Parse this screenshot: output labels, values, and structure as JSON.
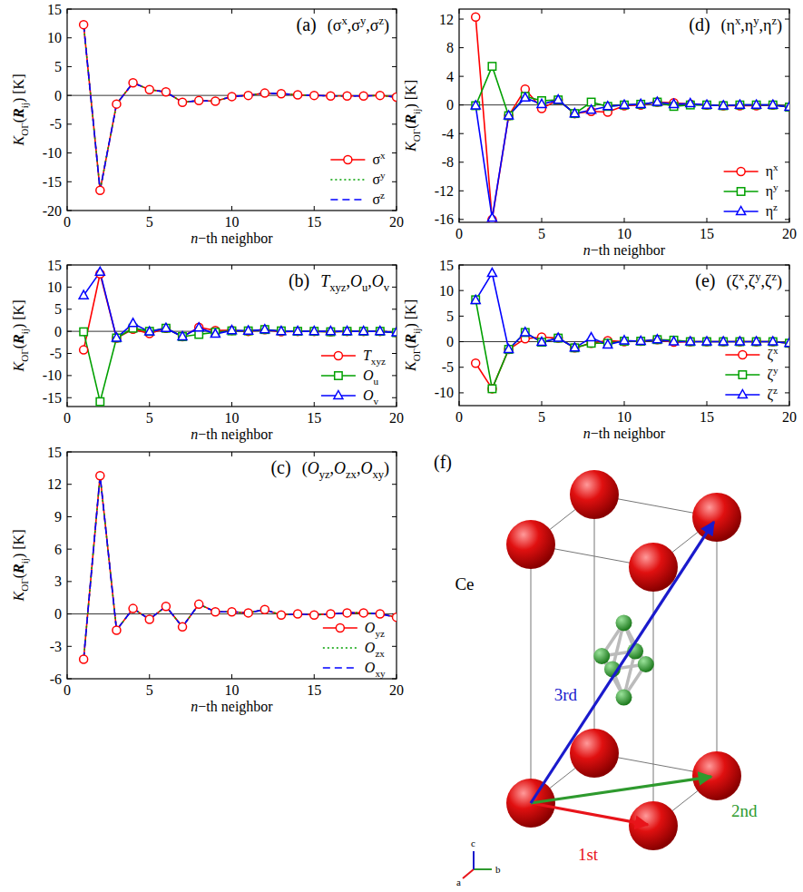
{
  "chart_data": [
    {
      "type": "line",
      "panel_label": "(a)",
      "title": [
        "(σ",
        {
          "sup": "x"
        },
        ",σ",
        {
          "sup": "y"
        },
        ",σ",
        {
          "sup": "z"
        },
        ")"
      ],
      "x_label": [
        {
          "i": "n"
        },
        "−th neighbor"
      ],
      "y_label": [
        {
          "i": "K"
        },
        {
          "sub": "OΓ"
        },
        "(",
        {
          "b": "R"
        },
        {
          "sub": "ij"
        },
        ") [K]"
      ],
      "x": [
        1,
        2,
        3,
        4,
        5,
        6,
        7,
        8,
        9,
        10,
        11,
        12,
        13,
        14,
        15,
        16,
        17,
        18,
        19,
        20
      ],
      "xlim": [
        0,
        20
      ],
      "xticks": [
        0,
        5,
        10,
        15,
        20
      ],
      "ylim": [
        -20,
        15
      ],
      "yticks": [
        -20,
        -15,
        -10,
        -5,
        0,
        5,
        10,
        15
      ],
      "legend": "lower right",
      "series": [
        {
          "name": [
            "σ",
            {
              "sup": "x"
            }
          ],
          "color": "#ff0000",
          "marker": "circle",
          "line_style": "solid",
          "values": [
            12.3,
            -16.5,
            -1.5,
            2.2,
            1.0,
            0.6,
            -1.2,
            -0.9,
            -1.0,
            -0.2,
            0.0,
            0.4,
            0.3,
            0.1,
            0.0,
            -0.1,
            -0.1,
            -0.1,
            0.0,
            -0.3
          ]
        },
        {
          "name": [
            "σ",
            {
              "sup": "y"
            }
          ],
          "color": "#00a000",
          "marker": "none",
          "line_style": "dotted",
          "values": [
            12.3,
            -16.5,
            -1.5,
            2.2,
            1.0,
            0.6,
            -1.2,
            -0.9,
            -1.0,
            -0.2,
            0.0,
            0.4,
            0.3,
            0.1,
            0.0,
            -0.1,
            -0.1,
            -0.1,
            0.0,
            -0.3
          ]
        },
        {
          "name": [
            "σ",
            {
              "sup": "z"
            }
          ],
          "color": "#0000ff",
          "marker": "none",
          "line_style": "dashed",
          "values": [
            12.3,
            -16.5,
            -1.5,
            2.2,
            1.0,
            0.6,
            -1.2,
            -0.9,
            -1.0,
            -0.2,
            0.0,
            0.4,
            0.3,
            0.1,
            0.0,
            -0.1,
            -0.1,
            -0.1,
            0.0,
            -0.3
          ]
        }
      ]
    },
    {
      "type": "line",
      "panel_label": "(b)",
      "title": [
        {
          "i": "T"
        },
        {
          "sub": "xyz"
        },
        ",",
        {
          "i": "O"
        },
        {
          "sub": "u"
        },
        ",",
        {
          "i": "O"
        },
        {
          "sub": "v"
        }
      ],
      "x_label": [
        {
          "i": "n"
        },
        "−th neighbor"
      ],
      "y_label": [
        {
          "i": "K"
        },
        {
          "sub": "OΓ"
        },
        "(",
        {
          "b": "R"
        },
        {
          "sub": "ij"
        },
        ") [K]"
      ],
      "x": [
        1,
        2,
        3,
        4,
        5,
        6,
        7,
        8,
        9,
        10,
        11,
        12,
        13,
        14,
        15,
        16,
        17,
        18,
        19,
        20
      ],
      "xlim": [
        0,
        20
      ],
      "xticks": [
        0,
        5,
        10,
        15,
        20
      ],
      "ylim": [
        -17,
        15
      ],
      "yticks": [
        -15,
        -10,
        -5,
        0,
        5,
        10,
        15
      ],
      "legend": "lower right",
      "series": [
        {
          "name": [
            {
              "i": "T"
            },
            {
              "sub": "xyz"
            }
          ],
          "color": "#ff0000",
          "marker": "circle",
          "line_style": "solid",
          "values": [
            -4.2,
            13.0,
            -1.5,
            0.5,
            -0.5,
            0.7,
            -1.2,
            0.9,
            0.2,
            0.2,
            0.0,
            0.4,
            -0.1,
            0.0,
            0.0,
            -0.1,
            0.0,
            0.0,
            0.0,
            -0.3
          ]
        },
        {
          "name": [
            {
              "i": "O"
            },
            {
              "sub": "u"
            }
          ],
          "color": "#00a000",
          "marker": "square",
          "line_style": "solid",
          "values": [
            -0.1,
            -15.9,
            -1.5,
            0.7,
            0.0,
            0.7,
            -1.2,
            -0.7,
            -0.2,
            0.1,
            0.1,
            0.4,
            0.1,
            0.0,
            0.0,
            -0.1,
            0.0,
            0.0,
            0.0,
            -0.3
          ]
        },
        {
          "name": [
            {
              "i": "O"
            },
            {
              "sub": "v"
            }
          ],
          "color": "#0000ff",
          "marker": "triangle",
          "line_style": "solid",
          "values": [
            8.1,
            13.4,
            -1.5,
            1.8,
            -0.1,
            0.7,
            -1.2,
            0.8,
            -0.6,
            0.2,
            0.1,
            0.4,
            0.0,
            0.0,
            0.0,
            0.0,
            0.0,
            0.0,
            0.0,
            -0.3
          ]
        }
      ]
    },
    {
      "type": "line",
      "panel_label": "(c)",
      "title": [
        "(",
        {
          "i": "O"
        },
        {
          "sub": "yz"
        },
        ",",
        {
          "i": "O"
        },
        {
          "sub": "zx"
        },
        ",",
        {
          "i": "O"
        },
        {
          "sub": "xy"
        },
        ")"
      ],
      "x_label": [
        {
          "i": "n"
        },
        "−th neighbor"
      ],
      "y_label": [
        {
          "i": "K"
        },
        {
          "sub": "OΓ"
        },
        "(",
        {
          "b": "R"
        },
        {
          "sub": "ij"
        },
        ") [K]"
      ],
      "x": [
        1,
        2,
        3,
        4,
        5,
        6,
        7,
        8,
        9,
        10,
        11,
        12,
        13,
        14,
        15,
        16,
        17,
        18,
        19,
        20
      ],
      "xlim": [
        0,
        20
      ],
      "xticks": [
        0,
        5,
        10,
        15,
        20
      ],
      "ylim": [
        -6,
        15
      ],
      "yticks": [
        -6,
        -3,
        0,
        3,
        6,
        9,
        12,
        15
      ],
      "legend": "lower right",
      "series": [
        {
          "name": [
            {
              "i": "O"
            },
            {
              "sub": "yz"
            }
          ],
          "color": "#ff0000",
          "marker": "circle",
          "line_style": "solid",
          "values": [
            -4.2,
            12.8,
            -1.5,
            0.5,
            -0.5,
            0.7,
            -1.2,
            0.9,
            0.2,
            0.2,
            0.1,
            0.4,
            -0.1,
            0.0,
            -0.1,
            0.0,
            0.1,
            0.1,
            0.0,
            -0.3
          ]
        },
        {
          "name": [
            {
              "i": "O"
            },
            {
              "sub": "zx"
            }
          ],
          "color": "#00a000",
          "marker": "none",
          "line_style": "dotted",
          "values": [
            -4.2,
            12.8,
            -1.5,
            0.5,
            -0.5,
            0.7,
            -1.2,
            0.9,
            0.2,
            0.2,
            0.1,
            0.4,
            -0.1,
            0.0,
            -0.1,
            0.0,
            0.1,
            0.1,
            0.0,
            -0.3
          ]
        },
        {
          "name": [
            {
              "i": "O"
            },
            {
              "sub": "xy"
            }
          ],
          "color": "#0000ff",
          "marker": "none",
          "line_style": "dashed",
          "values": [
            -4.2,
            12.8,
            -1.5,
            0.5,
            -0.5,
            0.7,
            -1.2,
            0.9,
            0.2,
            0.2,
            0.1,
            0.4,
            -0.1,
            0.0,
            -0.1,
            0.0,
            0.1,
            0.1,
            0.0,
            -0.3
          ]
        }
      ]
    },
    {
      "type": "line",
      "panel_label": "(d)",
      "title": [
        "(η",
        {
          "sup": "x"
        },
        ",η",
        {
          "sup": "y"
        },
        ",η",
        {
          "sup": "z"
        },
        ")"
      ],
      "x_label": [
        {
          "i": "n"
        },
        "−th neighbor"
      ],
      "y_label": [
        {
          "i": "K"
        },
        {
          "sub": "OΓ"
        },
        "(",
        {
          "b": "R"
        },
        {
          "sub": "ij"
        },
        ") [K]"
      ],
      "x": [
        1,
        2,
        3,
        4,
        5,
        6,
        7,
        8,
        9,
        10,
        11,
        12,
        13,
        14,
        15,
        16,
        17,
        18,
        19,
        20
      ],
      "xlim": [
        0,
        20
      ],
      "xticks": [
        0,
        5,
        10,
        15,
        20
      ],
      "ylim": [
        -16.4,
        13.4
      ],
      "yticks": [
        -16,
        -12,
        -8,
        -4,
        0,
        4,
        8,
        12
      ],
      "legend": "lower right",
      "series": [
        {
          "name": [
            "η",
            {
              "sup": "x"
            }
          ],
          "color": "#ff0000",
          "marker": "circle",
          "line_style": "solid",
          "values": [
            12.3,
            -16.0,
            -1.5,
            2.2,
            -0.5,
            0.7,
            -1.2,
            -0.9,
            -1.0,
            -0.1,
            0.0,
            0.4,
            0.3,
            0.1,
            0.0,
            -0.1,
            -0.1,
            -0.1,
            0.0,
            -0.3
          ]
        },
        {
          "name": [
            "η",
            {
              "sup": "y"
            }
          ],
          "color": "#00a000",
          "marker": "square",
          "line_style": "solid",
          "values": [
            -0.1,
            5.4,
            -1.5,
            1.2,
            0.6,
            0.7,
            -1.2,
            0.4,
            -0.2,
            0.0,
            0.1,
            0.4,
            -0.2,
            0.0,
            0.0,
            -0.1,
            0.0,
            0.0,
            0.0,
            -0.3
          ]
        },
        {
          "name": [
            "η",
            {
              "sup": "z"
            }
          ],
          "color": "#0000ff",
          "marker": "triangle",
          "line_style": "solid",
          "values": [
            -0.1,
            -15.8,
            -1.5,
            1.0,
            0.1,
            0.7,
            -1.2,
            -0.7,
            -0.2,
            0.0,
            0.1,
            0.4,
            0.1,
            0.2,
            0.0,
            -0.1,
            0.0,
            0.0,
            0.0,
            -0.3
          ]
        }
      ]
    },
    {
      "type": "line",
      "panel_label": "(e)",
      "title": [
        "(ζ",
        {
          "sup": "x"
        },
        ",ζ",
        {
          "sup": "y"
        },
        ",ζ",
        {
          "sup": "z"
        },
        ")"
      ],
      "x_label": [
        {
          "i": "n"
        },
        "−th neighbor"
      ],
      "y_label": [
        {
          "i": "K"
        },
        {
          "sub": "OΓ"
        },
        "(",
        {
          "b": "R"
        },
        {
          "sub": "ij"
        },
        ") [K]"
      ],
      "x": [
        1,
        2,
        3,
        4,
        5,
        6,
        7,
        8,
        9,
        10,
        11,
        12,
        13,
        14,
        15,
        16,
        17,
        18,
        19,
        20
      ],
      "xlim": [
        0,
        20
      ],
      "xticks": [
        0,
        5,
        10,
        15,
        20
      ],
      "ylim": [
        -12.5,
        15
      ],
      "yticks": [
        -10,
        -5,
        0,
        5,
        10,
        15
      ],
      "legend": "lower right",
      "series": [
        {
          "name": [
            "ζ",
            {
              "sup": "x"
            }
          ],
          "color": "#ff0000",
          "marker": "circle",
          "line_style": "solid",
          "values": [
            -4.2,
            -9.2,
            -1.5,
            0.6,
            0.9,
            0.7,
            -1.2,
            -0.3,
            0.2,
            0.0,
            0.1,
            0.4,
            -0.1,
            0.0,
            0.0,
            0.0,
            0.0,
            0.0,
            0.0,
            -0.3
          ]
        },
        {
          "name": [
            "ζ",
            {
              "sup": "y"
            }
          ],
          "color": "#00a000",
          "marker": "square",
          "line_style": "solid",
          "values": [
            8.2,
            -9.2,
            -1.5,
            1.8,
            -0.1,
            0.7,
            -1.2,
            -0.3,
            -0.3,
            0.1,
            0.1,
            0.4,
            0.3,
            0.0,
            0.0,
            0.0,
            0.0,
            0.0,
            0.0,
            -0.3
          ]
        },
        {
          "name": [
            "ζ",
            {
              "sup": "z"
            }
          ],
          "color": "#0000ff",
          "marker": "triangle",
          "line_style": "solid",
          "values": [
            8.1,
            13.4,
            -1.5,
            1.8,
            -0.1,
            0.7,
            -1.2,
            0.8,
            -0.6,
            0.2,
            0.1,
            0.4,
            0.0,
            0.0,
            0.0,
            0.0,
            0.0,
            0.0,
            0.0,
            -0.3
          ]
        }
      ]
    }
  ],
  "diagram": {
    "panel_label": "(f)",
    "atom_label": "Ce",
    "arrows": [
      {
        "label": "1st",
        "color": "#e8141a"
      },
      {
        "label": "2nd",
        "color": "#2e9a2e"
      },
      {
        "label": "3rd",
        "color": "#1a1acc"
      }
    ],
    "axes": [
      "a",
      "b",
      "c"
    ]
  }
}
